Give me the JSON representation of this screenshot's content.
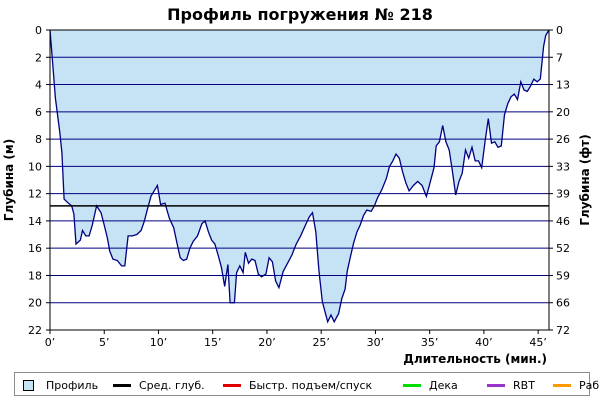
{
  "chart_data": {
    "type": "area",
    "title": "Профиль погружения № 218",
    "xlabel": "Длительность (мин.)",
    "ylabel": "Глубина (м)",
    "ylabel_right": "Глубина (фт)",
    "xlim": [
      0,
      46
    ],
    "ylim": [
      0,
      22
    ],
    "inverted_y": true,
    "grid": true,
    "fill_color": "#c6e2f5",
    "line_color": "#000080",
    "avg_depth_color": "#000000",
    "x_ticks": [
      0,
      5,
      10,
      15,
      20,
      25,
      30,
      35,
      40,
      45
    ],
    "x_tick_labels": [
      "0’",
      "5’",
      "10’",
      "15’",
      "20’",
      "25’",
      "30’",
      "35’",
      "40’",
      "45’"
    ],
    "y_ticks": [
      0,
      2,
      4,
      6,
      8,
      10,
      12,
      14,
      16,
      18,
      20,
      22
    ],
    "y_tick_labels": [
      "0",
      "2",
      "4",
      "6",
      "8",
      "10",
      "12",
      "14",
      "16",
      "18",
      "20",
      "22"
    ],
    "y_right_ticks": [
      0,
      2,
      4,
      6,
      8,
      10,
      12,
      14,
      16,
      18,
      20,
      22
    ],
    "y_right_tick_labels": [
      "0",
      "7",
      "13",
      "20",
      "26",
      "33",
      "39",
      "46",
      "52",
      "59",
      "66",
      "72"
    ],
    "average_depth": 12.9,
    "series": [
      {
        "name": "Профиль",
        "points": [
          [
            0,
            0
          ],
          [
            0.2,
            2.0
          ],
          [
            0.5,
            5.0
          ],
          [
            0.9,
            7.5
          ],
          [
            1.1,
            9.0
          ],
          [
            1.3,
            12.4
          ],
          [
            1.7,
            12.7
          ],
          [
            2.0,
            12.9
          ],
          [
            2.2,
            13.5
          ],
          [
            2.4,
            15.7
          ],
          [
            2.8,
            15.4
          ],
          [
            3.0,
            14.7
          ],
          [
            3.3,
            15.1
          ],
          [
            3.6,
            15.1
          ],
          [
            3.9,
            14.3
          ],
          [
            4.3,
            12.9
          ],
          [
            4.7,
            13.4
          ],
          [
            5.0,
            14.3
          ],
          [
            5.3,
            15.3
          ],
          [
            5.5,
            16.2
          ],
          [
            5.8,
            16.8
          ],
          [
            6.2,
            16.9
          ],
          [
            6.6,
            17.3
          ],
          [
            6.9,
            17.3
          ],
          [
            7.2,
            15.1
          ],
          [
            7.6,
            15.1
          ],
          [
            8.0,
            15.0
          ],
          [
            8.4,
            14.7
          ],
          [
            8.7,
            14.0
          ],
          [
            9.0,
            13.1
          ],
          [
            9.3,
            12.2
          ],
          [
            9.6,
            11.8
          ],
          [
            9.9,
            11.4
          ],
          [
            10.2,
            12.8
          ],
          [
            10.6,
            12.7
          ],
          [
            11.0,
            13.8
          ],
          [
            11.4,
            14.5
          ],
          [
            11.7,
            15.6
          ],
          [
            12.0,
            16.7
          ],
          [
            12.3,
            16.9
          ],
          [
            12.6,
            16.8
          ],
          [
            12.9,
            16.0
          ],
          [
            13.2,
            15.5
          ],
          [
            13.6,
            15.1
          ],
          [
            14.0,
            14.2
          ],
          [
            14.3,
            14.0
          ],
          [
            14.6,
            14.8
          ],
          [
            14.9,
            15.4
          ],
          [
            15.2,
            15.7
          ],
          [
            15.5,
            16.5
          ],
          [
            15.8,
            17.4
          ],
          [
            16.1,
            18.8
          ],
          [
            16.4,
            17.2
          ],
          [
            16.6,
            20.0
          ],
          [
            17.0,
            20.0
          ],
          [
            17.2,
            17.8
          ],
          [
            17.5,
            17.3
          ],
          [
            17.8,
            17.8
          ],
          [
            18.0,
            16.3
          ],
          [
            18.3,
            17.1
          ],
          [
            18.6,
            16.8
          ],
          [
            18.9,
            16.9
          ],
          [
            19.2,
            17.9
          ],
          [
            19.5,
            18.1
          ],
          [
            19.9,
            17.9
          ],
          [
            20.2,
            16.7
          ],
          [
            20.5,
            17.0
          ],
          [
            20.8,
            18.4
          ],
          [
            21.1,
            18.9
          ],
          [
            21.5,
            17.7
          ],
          [
            21.9,
            17.1
          ],
          [
            22.3,
            16.5
          ],
          [
            22.7,
            15.7
          ],
          [
            23.1,
            15.1
          ],
          [
            23.5,
            14.4
          ],
          [
            23.9,
            13.7
          ],
          [
            24.2,
            13.4
          ],
          [
            24.5,
            14.8
          ],
          [
            24.8,
            17.7
          ],
          [
            25.1,
            19.9
          ],
          [
            25.4,
            20.8
          ],
          [
            25.6,
            21.4
          ],
          [
            25.9,
            20.9
          ],
          [
            26.2,
            21.4
          ],
          [
            26.6,
            20.8
          ],
          [
            26.9,
            19.7
          ],
          [
            27.2,
            19.0
          ],
          [
            27.4,
            17.7
          ],
          [
            27.7,
            16.6
          ],
          [
            28.0,
            15.6
          ],
          [
            28.3,
            14.8
          ],
          [
            28.6,
            14.3
          ],
          [
            28.9,
            13.6
          ],
          [
            29.2,
            13.2
          ],
          [
            29.6,
            13.3
          ],
          [
            29.9,
            12.9
          ],
          [
            30.2,
            12.3
          ],
          [
            30.6,
            11.7
          ],
          [
            31.0,
            10.9
          ],
          [
            31.3,
            10.0
          ],
          [
            31.6,
            9.6
          ],
          [
            31.9,
            9.1
          ],
          [
            32.2,
            9.4
          ],
          [
            32.5,
            10.4
          ],
          [
            32.8,
            11.2
          ],
          [
            33.1,
            11.8
          ],
          [
            33.5,
            11.4
          ],
          [
            33.9,
            11.1
          ],
          [
            34.3,
            11.4
          ],
          [
            34.7,
            12.2
          ],
          [
            35.0,
            11.3
          ],
          [
            35.4,
            10.1
          ],
          [
            35.6,
            8.5
          ],
          [
            35.9,
            8.2
          ],
          [
            36.2,
            7.0
          ],
          [
            36.5,
            8.2
          ],
          [
            36.8,
            8.8
          ],
          [
            37.1,
            10.4
          ],
          [
            37.4,
            12.1
          ],
          [
            37.7,
            11.1
          ],
          [
            38.0,
            10.5
          ],
          [
            38.3,
            8.8
          ],
          [
            38.6,
            9.4
          ],
          [
            38.9,
            8.6
          ],
          [
            39.2,
            9.6
          ],
          [
            39.5,
            9.6
          ],
          [
            39.8,
            10.1
          ],
          [
            40.1,
            8.2
          ],
          [
            40.4,
            6.5
          ],
          [
            40.7,
            8.3
          ],
          [
            41.0,
            8.2
          ],
          [
            41.3,
            8.6
          ],
          [
            41.6,
            8.5
          ],
          [
            41.9,
            6.2
          ],
          [
            42.2,
            5.4
          ],
          [
            42.5,
            4.9
          ],
          [
            42.8,
            4.7
          ],
          [
            43.1,
            5.1
          ],
          [
            43.4,
            3.8
          ],
          [
            43.7,
            4.4
          ],
          [
            44.0,
            4.5
          ],
          [
            44.3,
            4.1
          ],
          [
            44.6,
            3.6
          ],
          [
            44.9,
            3.8
          ],
          [
            45.2,
            3.6
          ],
          [
            45.5,
            1.2
          ],
          [
            45.7,
            0.4
          ],
          [
            46.0,
            0
          ]
        ]
      }
    ]
  },
  "legend": {
    "items": [
      {
        "label": "Профиль",
        "kind": "box",
        "color": "#c6e2f5"
      },
      {
        "label": "Сред. глуб.",
        "kind": "line",
        "color": "#000000"
      },
      {
        "label": "Быстр. подъем/спуск",
        "kind": "line",
        "color": "#e00000"
      },
      {
        "label": "Дека",
        "kind": "line",
        "color": "#00dd00"
      },
      {
        "label": "RBT",
        "kind": "line",
        "color": "#9933cc"
      },
      {
        "label": "Раб.",
        "kind": "line",
        "color": "#ff9900"
      }
    ]
  }
}
